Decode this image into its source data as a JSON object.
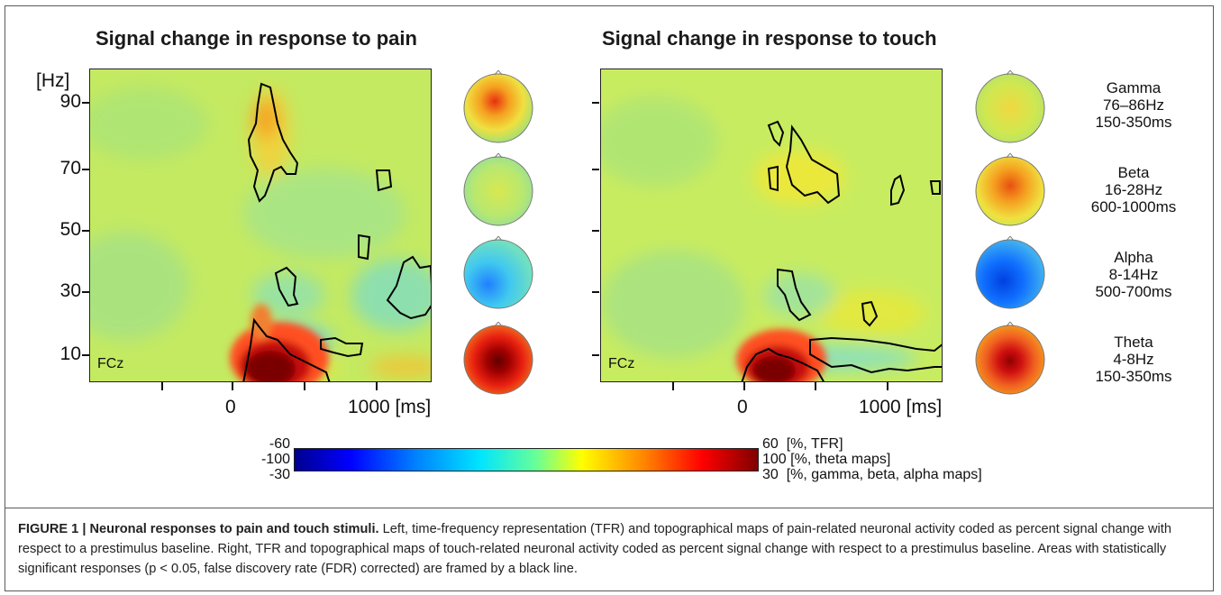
{
  "figure": {
    "left_title": "Signal change in response to pain",
    "right_title": "Signal change in response to touch",
    "y_unit": "[Hz]",
    "y_ticks": [
      "90",
      "70",
      "50",
      "30",
      "10"
    ],
    "x_ticks": [
      "0",
      "1000 [ms]"
    ],
    "channel_label": "FCz",
    "bands": [
      {
        "name": "Gamma",
        "freq": "76–86Hz",
        "time": "150-350ms"
      },
      {
        "name": "Beta",
        "freq": "16-28Hz",
        "time": "600-1000ms"
      },
      {
        "name": "Alpha",
        "freq": "8-14Hz",
        "time": "500-700ms"
      },
      {
        "name": "Theta",
        "freq": "4-8Hz",
        "time": "150-350ms"
      }
    ],
    "colorbar": {
      "left_values": [
        "-60",
        "-100",
        "-30"
      ],
      "right_values": [
        "60",
        "100",
        "30"
      ],
      "right_units": [
        "[%, TFR]",
        "[%, theta maps]",
        "[%, gamma, beta, alpha maps]"
      ]
    }
  },
  "caption": {
    "label": "FIGURE 1 | Neuronal responses to pain and touch stimuli.",
    "text": " Left, time-frequency representation (TFR) and topographical maps of pain-related neuronal activity coded as percent signal change with respect to a prestimulus baseline. Right, TFR and topographical maps of touch-related neuronal activity coded as percent signal change with respect to a prestimulus baseline. Areas with statistically significant responses (p < 0.05, false discovery rate (FDR) corrected) are framed by a black line."
  },
  "colors": {
    "background_field": "#c4ea62",
    "positive": "#c00000",
    "negative": "#20a0ff"
  }
}
